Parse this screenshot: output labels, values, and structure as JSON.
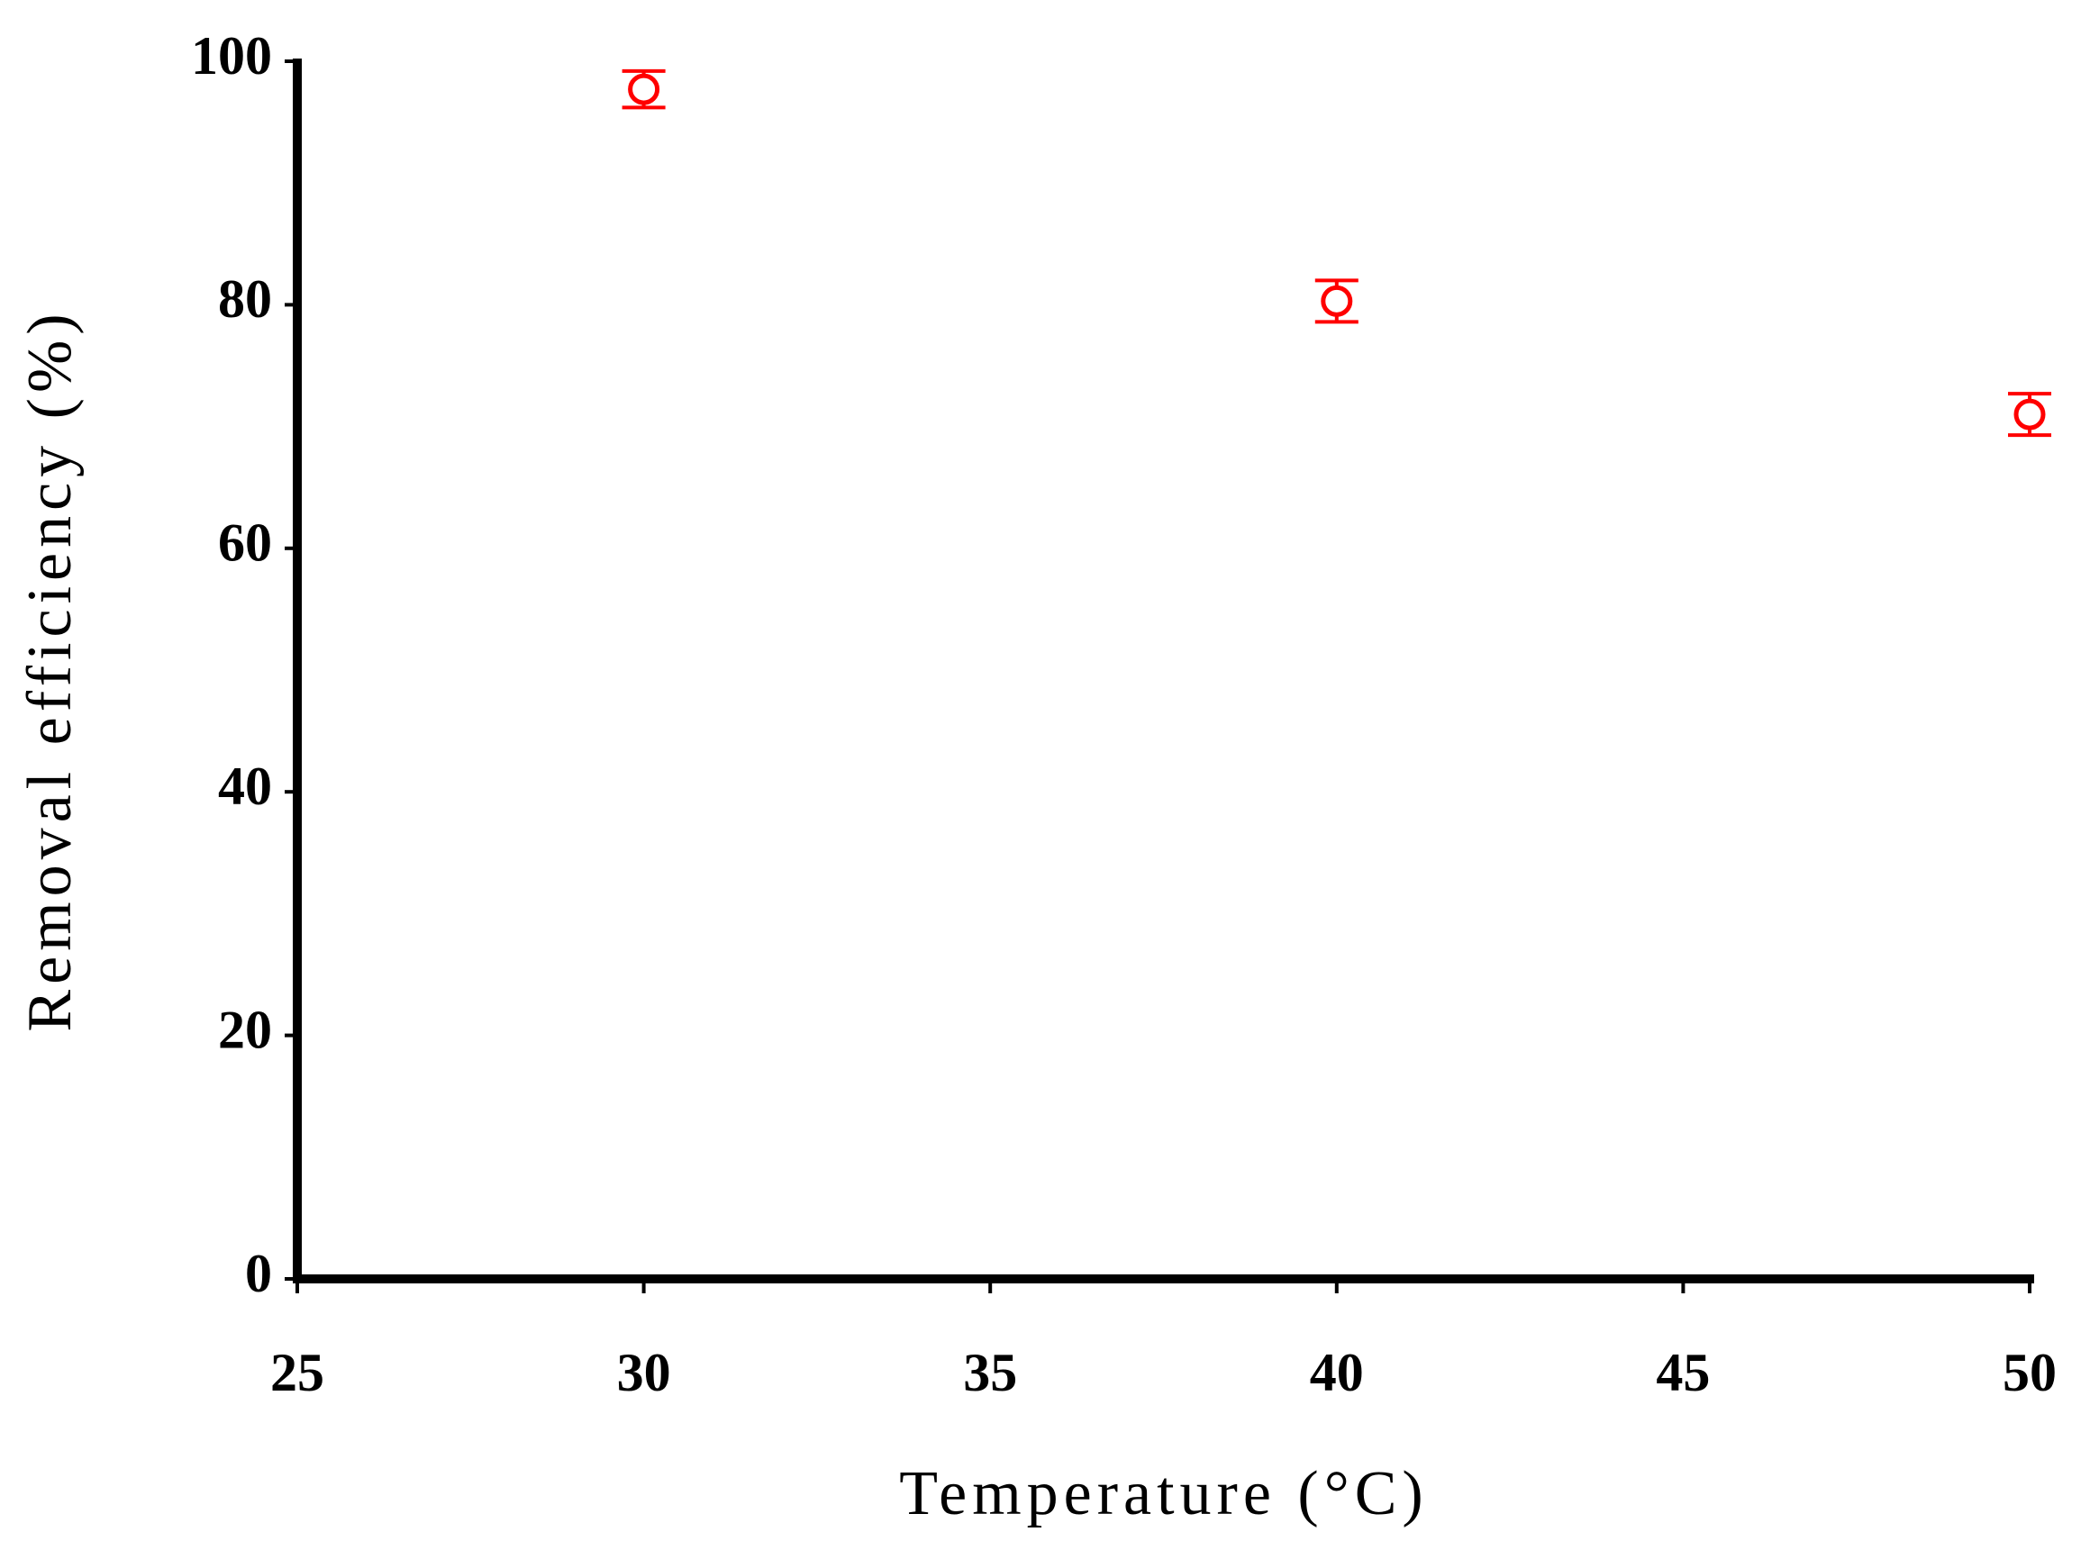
{
  "chart_data": {
    "type": "scatter",
    "x_label": "Temperature (°C)",
    "y_label": "Removal efficiency (%)",
    "series": [
      {
        "color": "#ff0000",
        "x": [
          30,
          40,
          50
        ],
        "values": [
          97.7,
          80.3,
          71.0
        ],
        "errors": [
          1.5,
          1.7,
          1.7
        ]
      }
    ],
    "xlim": [
      25,
      50
    ],
    "xticks": [
      25,
      30,
      35,
      40,
      45,
      50
    ],
    "ylim": [
      0,
      100
    ],
    "yticks": [
      0,
      20,
      40,
      60,
      80,
      100
    ],
    "grid": false
  }
}
